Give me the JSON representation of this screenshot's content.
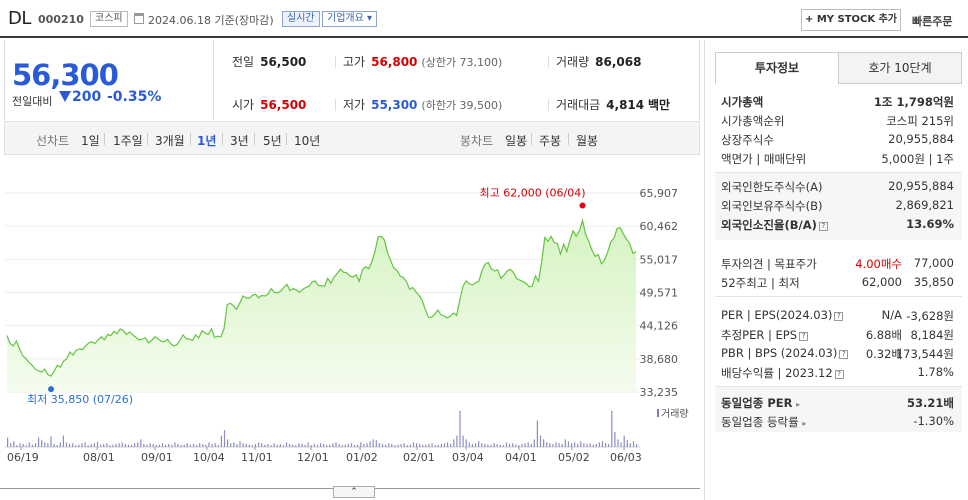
{
  "header": {
    "name": "DL",
    "code": "000210",
    "market": "코스피",
    "date": "2024.06.18 기준(장마감)",
    "realtime": "실시간",
    "company": "기업개요",
    "mystock": "+ MY STOCK 추가",
    "quick": "빠른주문"
  },
  "price": {
    "current": "56,300",
    "vs_label": "전일대비",
    "change": "200",
    "rate": "-0.35%",
    "prev_label": "전일",
    "prev": "56,500",
    "high_label": "고가",
    "high": "56,800",
    "upper_limit": "(상한가 73,100)",
    "volume_label": "거래량",
    "volume": "86,068",
    "open_label": "시가",
    "open": "56,500",
    "low_label": "저가",
    "low": "55,300",
    "lower_limit": "(하한가 39,500)",
    "amount_label": "거래대금",
    "amount": "4,814",
    "amount_unit": "백만"
  },
  "periods": {
    "line_label": "선차트",
    "line_items": [
      "1일",
      "1주일",
      "3개월",
      "1년",
      "3년",
      "5년",
      "10년"
    ],
    "selected": "1년",
    "candle_label": "봉차트",
    "candle_items": [
      "일봉",
      "주봉",
      "월봉"
    ]
  },
  "chart_data": {
    "type": "area",
    "y_ticks": [
      "65,907",
      "60,462",
      "55,017",
      "49,571",
      "44,126",
      "38,680",
      "33,235"
    ],
    "ylim": [
      33235,
      65907
    ],
    "x_labels": [
      "06/19",
      "08/01",
      "09/01",
      "10/04",
      "11/01",
      "12/01",
      "01/02",
      "02/01",
      "03/04",
      "04/01",
      "05/02",
      "06/03"
    ],
    "high_annotation": "최고 62,000 (06/04)",
    "low_annotation": "최저 35,850 (07/26)",
    "volume_label": "거래량",
    "line_color": "#64c440",
    "fill_color": "#d5f3c2",
    "series": [
      {
        "values": [
          42500,
          41200,
          40800,
          41600,
          40300,
          39200,
          38700,
          38100,
          37600,
          37000,
          36700,
          36500,
          37000,
          36100,
          35850,
          36700,
          37600,
          37300,
          38300,
          38700,
          39800,
          39300,
          40100,
          40300,
          40200,
          40800,
          41300,
          41500,
          41200,
          41800,
          42300,
          41800,
          42700,
          42500,
          43200,
          42800,
          43600,
          43300,
          42700,
          43100,
          42600,
          42200,
          41800,
          41900,
          42100,
          41300,
          41700,
          42300,
          42000,
          41600,
          41500,
          41900,
          41200,
          40800,
          41000,
          41700,
          42600,
          42000,
          41900,
          41700,
          42600,
          42100,
          43300,
          42900,
          42700,
          43600,
          42200,
          42400,
          42300,
          43600,
          47600,
          47800,
          47400,
          46800,
          47800,
          49000,
          48700,
          48600,
          49100,
          49300,
          48700,
          49100,
          49000,
          49300,
          50200,
          49600,
          49500,
          49800,
          50400,
          50900,
          49900,
          50200,
          50000,
          49600,
          50100,
          50400,
          50600,
          51300,
          51500,
          50700,
          50700,
          50600,
          51900,
          51100,
          52100,
          52700,
          53400,
          52900,
          52800,
          52300,
          52100,
          52500,
          51400,
          53300,
          53800,
          53500,
          54600,
          56300,
          58700,
          58800,
          58200,
          56100,
          54800,
          53600,
          53200,
          52300,
          52000,
          51400,
          50100,
          50400,
          49700,
          49100,
          48300,
          46800,
          45500,
          45500,
          46000,
          46700,
          45900,
          45700,
          45400,
          45700,
          46200,
          45800,
          48400,
          50600,
          51500,
          51000,
          50800,
          51200,
          51400,
          53100,
          54200,
          54500,
          53500,
          53100,
          53300,
          51900,
          52400,
          53100,
          53400,
          52900,
          51900,
          51600,
          51400,
          51100,
          50500,
          50600,
          52300,
          51400,
          54500,
          58600,
          58000,
          58800,
          57800,
          57600,
          55900,
          57500,
          56300,
          58200,
          59700,
          58800,
          59700,
          61400,
          59100,
          58000,
          56500,
          55500,
          55800,
          54300,
          54900,
          56200,
          57900,
          58500,
          60100,
          60200,
          59200,
          58300,
          57600,
          56000,
          56300
        ]
      }
    ],
    "volumes": [
      0.25,
      0.1,
      0.15,
      0.05,
      0.1,
      0.08,
      0.05,
      0.12,
      0.06,
      0.1,
      0.25,
      0.18,
      0.12,
      0.1,
      0.28,
      0.08,
      0.05,
      0.12,
      0.3,
      0.12,
      0.08,
      0.1,
      0.05,
      0.06,
      0.1,
      0.12,
      0.05,
      0.08,
      0.1,
      0.14,
      0.06,
      0.08,
      0.1,
      0.05,
      0.06,
      0.08,
      0.1,
      0.12,
      0.08,
      0.06,
      0.05,
      0.1,
      0.12,
      0.2,
      0.08,
      0.06,
      0.1,
      0.08,
      0.05,
      0.06,
      0.1,
      0.05,
      0.08,
      0.06,
      0.12,
      0.08,
      0.05,
      0.06,
      0.1,
      0.06,
      0.08,
      0.05,
      0.1,
      0.08,
      0.06,
      0.12,
      0.08,
      0.1,
      0.05,
      0.3,
      0.45,
      0.2,
      0.1,
      0.12,
      0.08,
      0.15,
      0.1,
      0.08,
      0.06,
      0.05,
      0.08,
      0.12,
      0.1,
      0.06,
      0.08,
      0.05,
      0.1,
      0.06,
      0.08,
      0.05,
      0.12,
      0.08,
      0.06,
      0.05,
      0.1,
      0.08,
      0.06,
      0.12,
      0.05,
      0.08,
      0.06,
      0.1,
      0.08,
      0.05,
      0.06,
      0.1,
      0.12,
      0.08,
      0.05,
      0.06,
      0.08,
      0.1,
      0.05,
      0.06,
      0.12,
      0.08,
      0.1,
      0.15,
      0.2,
      0.18,
      0.1,
      0.08,
      0.06,
      0.1,
      0.08,
      0.05,
      0.06,
      0.08,
      0.1,
      0.05,
      0.06,
      0.12,
      0.1,
      0.08,
      0.05,
      0.06,
      0.08,
      0.1,
      0.05,
      0.06,
      0.08,
      0.1,
      0.12,
      0.08,
      0.2,
      0.3,
      0.95,
      0.3,
      0.2,
      0.12,
      0.08,
      0.1,
      0.15,
      0.1,
      0.08,
      0.06,
      0.05,
      0.1,
      0.08,
      0.06,
      0.05,
      0.12,
      0.08,
      0.1,
      0.06,
      0.05,
      0.08,
      0.1,
      0.12,
      0.08,
      0.2,
      0.7,
      0.3,
      0.2,
      0.12,
      0.1,
      0.08,
      0.12,
      0.1,
      0.08,
      0.2,
      0.15,
      0.1,
      0.12,
      0.08,
      0.15,
      0.1,
      0.08,
      0.1,
      0.06,
      0.08,
      0.12,
      0.15,
      0.1,
      0.08,
      0.95,
      0.4,
      0.2,
      0.12,
      0.3,
      0.18,
      0.1,
      0.15,
      0.08
    ]
  },
  "tabs": [
    "투자정보",
    "호가 10단계"
  ],
  "info": {
    "market_cap_label": "시가총액",
    "market_cap": "1조 1,798억원",
    "rank_label": "시가총액순위",
    "rank": "코스피 215위",
    "shares_label": "상장주식수",
    "shares": "20,955,884",
    "face_label": "액면가 | 매매단위",
    "face": "5,000원 | 1주",
    "foreign_limit_label": "외국인한도주식수(A)",
    "foreign_limit": "20,955,884",
    "foreign_hold_label": "외국인보유주식수(B)",
    "foreign_hold": "2,869,821",
    "foreign_rate_label": "외국인소진율(B/A)",
    "foreign_rate": "13.69%",
    "opinion_label": "투자의견 | 목표주가",
    "opinion": "4.00매수",
    "target": "77,000",
    "w52_label": "52주최고 | 최저",
    "w52_high": "62,000",
    "w52_low": "35,850",
    "per_label": "PER | EPS(2024.03)",
    "per": "N/A",
    "eps": "-3,628원",
    "est_label": "추정PER | EPS",
    "est_per": "6.88배",
    "est_eps": "8,184원",
    "pbr_label": "PBR | BPS (2024.03)",
    "pbr": "0.32배",
    "bps": "173,544원",
    "div_label": "배당수익률 | 2023.12",
    "div": "1.78%",
    "ind_per_label": "동일업종 PER",
    "ind_per": "53.21배",
    "ind_rate_label": "동일업종 등락률",
    "ind_rate": "-1.30%"
  },
  "expand_label": "⌃"
}
